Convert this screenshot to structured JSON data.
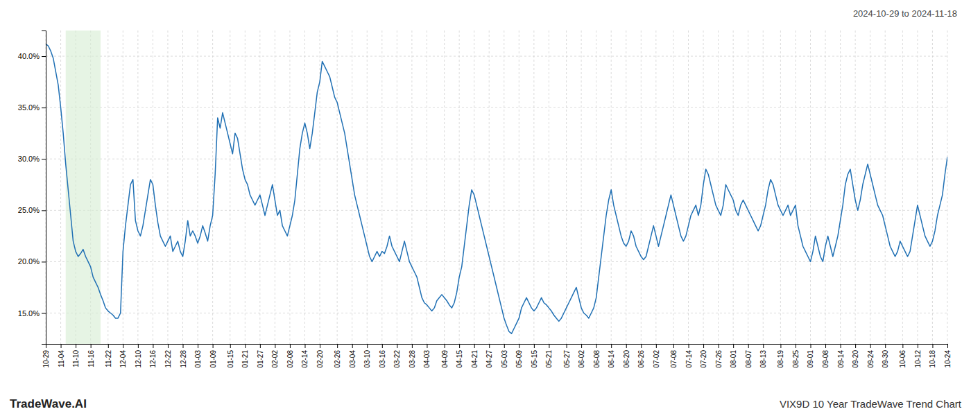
{
  "chart_data": {
    "type": "line",
    "title": "2024-10-29 to 2024-11-18",
    "annotations": [
      "TradeWave.AI",
      "VIX9D 10 Year TradeWave Trend Chart"
    ],
    "color": "#2070b4",
    "grid": true,
    "ylim": [
      12.0,
      42.5
    ],
    "yticks": [
      {
        "value": 15.0,
        "label": "15.0%"
      },
      {
        "value": 20.0,
        "label": "20.0%"
      },
      {
        "value": 25.0,
        "label": "25.0%"
      },
      {
        "value": 30.0,
        "label": "30.0%"
      },
      {
        "value": 35.0,
        "label": "35.0%"
      },
      {
        "value": 40.0,
        "label": "40.0%"
      }
    ],
    "shade": {
      "start": 8,
      "end": 22,
      "color": "#d6ecd2"
    },
    "categories": [
      "10-29",
      null,
      null,
      null,
      null,
      null,
      "11-04",
      null,
      null,
      null,
      null,
      null,
      "11-10",
      null,
      null,
      null,
      null,
      null,
      "11-16",
      null,
      null,
      null,
      null,
      null,
      null,
      "11-22",
      null,
      null,
      null,
      null,
      null,
      "12-04",
      null,
      null,
      null,
      null,
      null,
      "12-10",
      null,
      null,
      null,
      null,
      null,
      "12-16",
      null,
      null,
      null,
      null,
      null,
      "12-22",
      null,
      null,
      null,
      null,
      null,
      "12-28",
      null,
      null,
      null,
      null,
      null,
      "01-03",
      null,
      null,
      null,
      null,
      null,
      "01-09",
      null,
      null,
      null,
      null,
      null,
      null,
      "01-15",
      null,
      null,
      null,
      null,
      null,
      "01-21",
      null,
      null,
      null,
      null,
      null,
      "01-27",
      null,
      null,
      null,
      null,
      null,
      "02-02",
      null,
      null,
      null,
      null,
      null,
      "02-08",
      null,
      null,
      null,
      null,
      null,
      "02-14",
      null,
      null,
      null,
      null,
      null,
      "02-20",
      null,
      null,
      null,
      null,
      null,
      null,
      "02-26",
      null,
      null,
      null,
      null,
      null,
      "03-04",
      null,
      null,
      null,
      null,
      null,
      "03-10",
      null,
      null,
      null,
      null,
      null,
      "03-16",
      null,
      null,
      null,
      null,
      null,
      "03-22",
      null,
      null,
      null,
      null,
      null,
      "03-28",
      null,
      null,
      null,
      null,
      null,
      "04-03",
      null,
      null,
      null,
      null,
      null,
      null,
      "04-09",
      null,
      null,
      null,
      null,
      null,
      "04-15",
      null,
      null,
      null,
      null,
      null,
      "04-21",
      null,
      null,
      null,
      null,
      null,
      "04-27",
      null,
      null,
      null,
      null,
      null,
      "05-03",
      null,
      null,
      null,
      null,
      null,
      "05-09",
      null,
      null,
      null,
      null,
      null,
      "05-15",
      null,
      null,
      null,
      null,
      null,
      "05-21",
      null,
      null,
      null,
      null,
      null,
      null,
      "05-27",
      null,
      null,
      null,
      null,
      null,
      "06-02",
      null,
      null,
      null,
      null,
      null,
      "06-08",
      null,
      null,
      null,
      null,
      null,
      "06-14",
      null,
      null,
      null,
      null,
      null,
      "06-20",
      null,
      null,
      null,
      null,
      null,
      "06-26",
      null,
      null,
      null,
      null,
      null,
      "07-02",
      null,
      null,
      null,
      null,
      null,
      null,
      "07-08",
      null,
      null,
      null,
      null,
      null,
      "07-14",
      null,
      null,
      null,
      null,
      null,
      "07-20",
      null,
      null,
      null,
      null,
      null,
      "07-26",
      null,
      null,
      null,
      null,
      null,
      "08-01",
      null,
      null,
      null,
      null,
      null,
      "08-07",
      null,
      null,
      null,
      null,
      null,
      "08-13",
      null,
      null,
      null,
      null,
      null,
      null,
      "08-19",
      null,
      null,
      null,
      null,
      null,
      "08-25",
      null,
      null,
      null,
      null,
      null,
      "09-01",
      null,
      null,
      null,
      null,
      null,
      "09-08",
      null,
      null,
      null,
      null,
      null,
      "09-14",
      null,
      null,
      null,
      null,
      null,
      "09-20",
      null,
      null,
      null,
      null,
      null,
      "09-24",
      null,
      null,
      null,
      null,
      null,
      "09-30",
      null,
      null,
      null,
      null,
      null,
      null,
      "10-06",
      null,
      null,
      null,
      null,
      null,
      "10-12",
      null,
      null,
      null,
      null,
      null,
      "10-18",
      null,
      null,
      null,
      null,
      null,
      "10-24"
    ],
    "values": [
      41.2,
      41.0,
      40.5,
      39.8,
      38.5,
      37.2,
      35.0,
      32.5,
      29.5,
      27.0,
      24.5,
      22.0,
      21.0,
      20.5,
      20.8,
      21.2,
      20.5,
      20.0,
      19.5,
      18.5,
      18.0,
      17.5,
      16.8,
      16.2,
      15.5,
      15.2,
      15.0,
      14.8,
      14.5,
      14.5,
      15.0,
      21.0,
      23.5,
      25.5,
      27.5,
      28.0,
      24.0,
      23.0,
      22.5,
      23.5,
      25.0,
      26.5,
      28.0,
      27.5,
      25.5,
      23.8,
      22.5,
      22.0,
      21.5,
      22.0,
      22.5,
      21.0,
      21.5,
      22.0,
      21.0,
      20.5,
      22.0,
      24.0,
      22.5,
      23.0,
      22.5,
      21.8,
      22.5,
      23.5,
      22.8,
      22.0,
      23.5,
      24.5,
      28.5,
      34.0,
      33.0,
      34.5,
      33.5,
      32.5,
      31.5,
      30.5,
      32.5,
      32.0,
      30.5,
      29.0,
      28.0,
      27.5,
      26.5,
      26.0,
      25.5,
      26.0,
      26.5,
      25.5,
      24.5,
      25.5,
      26.5,
      27.5,
      26.0,
      24.5,
      25.0,
      23.5,
      23.0,
      22.5,
      23.5,
      24.5,
      26.0,
      28.5,
      31.0,
      32.5,
      33.5,
      32.5,
      31.0,
      32.5,
      34.5,
      36.5,
      37.5,
      39.5,
      39.0,
      38.5,
      38.0,
      37.0,
      36.0,
      35.5,
      34.5,
      33.5,
      32.5,
      31.0,
      29.5,
      28.0,
      26.5,
      25.5,
      24.5,
      23.5,
      22.5,
      21.5,
      20.5,
      20.0,
      20.5,
      21.0,
      20.5,
      21.0,
      20.8,
      21.5,
      22.5,
      21.5,
      21.0,
      20.5,
      20.0,
      21.0,
      22.0,
      21.0,
      20.0,
      19.5,
      19.0,
      18.5,
      17.5,
      16.5,
      16.0,
      15.8,
      15.5,
      15.2,
      15.5,
      16.2,
      16.5,
      16.8,
      16.5,
      16.2,
      15.8,
      15.5,
      16.0,
      17.0,
      18.5,
      19.5,
      21.5,
      23.5,
      25.5,
      27.0,
      26.5,
      25.5,
      24.5,
      23.5,
      22.5,
      21.5,
      20.5,
      19.5,
      18.5,
      17.5,
      16.5,
      15.5,
      14.5,
      13.8,
      13.2,
      13.0,
      13.5,
      14.0,
      14.5,
      15.5,
      16.0,
      16.5,
      16.0,
      15.5,
      15.2,
      15.5,
      16.0,
      16.5,
      16.0,
      15.8,
      15.5,
      15.2,
      14.8,
      14.5,
      14.2,
      14.5,
      15.0,
      15.5,
      16.0,
      16.5,
      17.0,
      17.5,
      16.5,
      15.5,
      15.0,
      14.8,
      14.5,
      15.0,
      15.5,
      16.5,
      18.5,
      20.5,
      22.5,
      24.5,
      26.0,
      27.0,
      25.5,
      24.5,
      23.5,
      22.5,
      21.8,
      21.5,
      22.0,
      23.0,
      22.5,
      21.5,
      21.0,
      20.5,
      20.2,
      20.5,
      21.5,
      22.5,
      23.5,
      22.5,
      21.5,
      22.5,
      23.5,
      24.5,
      25.5,
      26.5,
      25.5,
      24.5,
      23.5,
      22.5,
      22.0,
      22.5,
      23.5,
      24.5,
      25.0,
      25.5,
      24.5,
      25.5,
      27.5,
      29.0,
      28.5,
      27.5,
      26.5,
      25.5,
      25.0,
      24.5,
      25.5,
      27.5,
      27.0,
      26.5,
      26.0,
      25.0,
      24.5,
      25.5,
      26.0,
      25.5,
      25.0,
      24.5,
      24.0,
      23.5,
      23.0,
      23.5,
      24.5,
      25.5,
      27.0,
      28.0,
      27.5,
      26.5,
      25.5,
      25.0,
      24.5,
      25.0,
      25.5,
      24.5,
      25.0,
      25.5,
      23.5,
      22.5,
      21.5,
      21.0,
      20.5,
      20.0,
      21.0,
      22.5,
      21.5,
      20.5,
      20.0,
      21.5,
      22.5,
      21.5,
      20.5,
      21.5,
      22.5,
      24.0,
      25.5,
      27.5,
      28.5,
      29.0,
      27.5,
      26.0,
      25.0,
      26.0,
      27.5,
      28.5,
      29.5,
      28.5,
      27.5,
      26.5,
      25.5,
      25.0,
      24.5,
      23.5,
      22.5,
      21.5,
      21.0,
      20.5,
      21.0,
      22.0,
      21.5,
      21.0,
      20.5,
      21.0,
      22.5,
      24.0,
      25.5,
      24.5,
      23.5,
      22.5,
      22.0,
      21.5,
      22.0,
      23.0,
      24.5,
      25.5,
      26.5,
      28.5,
      30.2
    ]
  }
}
